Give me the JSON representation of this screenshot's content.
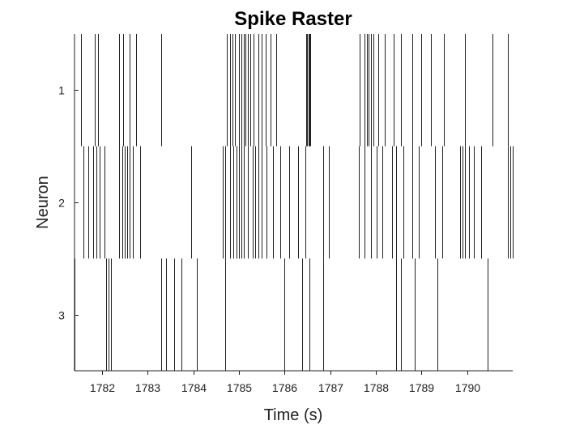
{
  "chart_data": {
    "type": "raster",
    "title": "Spike Raster",
    "xlabel": "Time (s)",
    "ylabel": "Neuron",
    "xlim": [
      1781.4,
      1791.0
    ],
    "ylim": [
      0.5,
      3.5
    ],
    "y_reversed": true,
    "xticks": [
      1782,
      1783,
      1784,
      1785,
      1786,
      1787,
      1788,
      1789,
      1790
    ],
    "yticks": [
      1,
      2,
      3
    ],
    "grid": false,
    "colors": {
      "spike": "#222222",
      "axis": "#222222",
      "background": "#ffffff"
    },
    "series": [
      {
        "neuron": 1,
        "spikes": [
          1781.55,
          1781.85,
          1781.92,
          1782.38,
          1782.46,
          1782.6,
          1782.74,
          1783.3,
          1784.73,
          1784.8,
          1784.86,
          1784.92,
          1785.0,
          1785.05,
          1785.1,
          1785.15,
          1785.2,
          1785.25,
          1785.33,
          1785.42,
          1785.5,
          1785.58,
          1785.7,
          1785.82,
          1786.48,
          1786.5,
          1786.52,
          1786.54,
          1786.56,
          1787.65,
          1787.75,
          1787.8,
          1787.84,
          1787.9,
          1787.95,
          1788.05,
          1788.2,
          1788.4,
          1788.55,
          1788.8,
          1789.0,
          1789.2,
          1789.5,
          1789.95,
          1790.55,
          1790.9
        ]
      },
      {
        "neuron": 2,
        "spikes": [
          1781.6,
          1781.7,
          1781.8,
          1781.88,
          1781.95,
          1782.05,
          1782.38,
          1782.45,
          1782.5,
          1782.55,
          1782.6,
          1782.67,
          1782.83,
          1783.95,
          1784.64,
          1784.7,
          1784.8,
          1784.88,
          1784.95,
          1785.0,
          1785.05,
          1785.1,
          1785.2,
          1785.3,
          1785.36,
          1785.42,
          1785.5,
          1785.6,
          1785.75,
          1785.9,
          1786.1,
          1786.3,
          1786.45,
          1786.85,
          1786.98,
          1787.62,
          1787.75,
          1787.9,
          1788.02,
          1788.15,
          1788.35,
          1788.45,
          1788.6,
          1788.8,
          1788.95,
          1789.3,
          1789.45,
          1789.85,
          1789.9,
          1789.95,
          1790.05,
          1790.15,
          1790.3,
          1790.9,
          1790.95,
          1791.0
        ]
      },
      {
        "neuron": 3,
        "spikes": [
          1781.4,
          1782.1,
          1782.15,
          1782.2,
          1783.3,
          1783.4,
          1783.58,
          1783.75,
          1784.08,
          1784.7,
          1786.0,
          1786.38,
          1786.55,
          1786.85,
          1788.45,
          1788.55,
          1788.85,
          1789.35,
          1790.45
        ]
      }
    ]
  }
}
